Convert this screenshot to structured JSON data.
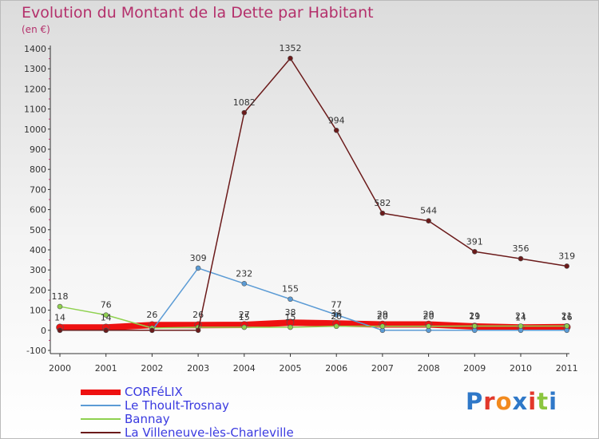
{
  "title": "Evolution du Montant de la Dette par Habitant",
  "unit": "(en €)",
  "logo": {
    "text": "Proxiti",
    "letter_colors": [
      "#2f78c8",
      "#e2382b",
      "#f28a1e",
      "#2f78c8",
      "#e2382b",
      "#8cc63f",
      "#2f78c8"
    ]
  },
  "chart_data": {
    "type": "line",
    "title": "Evolution du Montant de la Dette par Habitant",
    "subtitle": "(en €)",
    "xlabel": "",
    "ylabel": "",
    "x": [
      "2000",
      "2001",
      "2002",
      "2003",
      "2004",
      "2005",
      "2006",
      "2007",
      "2008",
      "2009",
      "2010",
      "2011"
    ],
    "ylim": [
      -100,
      1400
    ],
    "yticks": [
      "-100",
      "0",
      "100",
      "200",
      "300",
      "400",
      "500",
      "600",
      "700",
      "800",
      "900",
      "1000",
      "1100",
      "1200",
      "1300",
      "1400"
    ],
    "grid": false,
    "legend_position": "bottom-left",
    "series": [
      {
        "name": "CORFéLIX",
        "color": "#ee1111",
        "values": [
          14,
          14,
          26,
          26,
          27,
          38,
          34,
          29,
          29,
          19,
          14,
          16
        ],
        "labels": [
          "14",
          "14",
          "26",
          "26",
          "27",
          "38",
          "34",
          "29",
          "29",
          "19",
          "14",
          "16"
        ]
      },
      {
        "name": "Le Thoult-Trosnay",
        "color": "#5b9bd5",
        "values": [
          0,
          0,
          0,
          309,
          232,
          155,
          77,
          0,
          0,
          0,
          0,
          0
        ],
        "labels": [
          "",
          "",
          "",
          "309",
          "232",
          "155",
          "77",
          "",
          "",
          "",
          "",
          ""
        ]
      },
      {
        "name": "Bannay",
        "color": "#8fd14f",
        "values": [
          118,
          76,
          11,
          15,
          15,
          15,
          20,
          20,
          20,
          21,
          21,
          21
        ],
        "labels": [
          "118",
          "76",
          "",
          "",
          "15",
          "15",
          "20",
          "20",
          "20",
          "21",
          "21",
          "21"
        ]
      },
      {
        "name": "La Villeneuve-lès-Charleville",
        "color": "#6b1a1a",
        "values": [
          0,
          0,
          0,
          0,
          1082,
          1352,
          994,
          582,
          544,
          391,
          356,
          319
        ],
        "labels": [
          "",
          "",
          "",
          "",
          "1082",
          "1352",
          "994",
          "582",
          "544",
          "391",
          "356",
          "319"
        ]
      }
    ]
  }
}
